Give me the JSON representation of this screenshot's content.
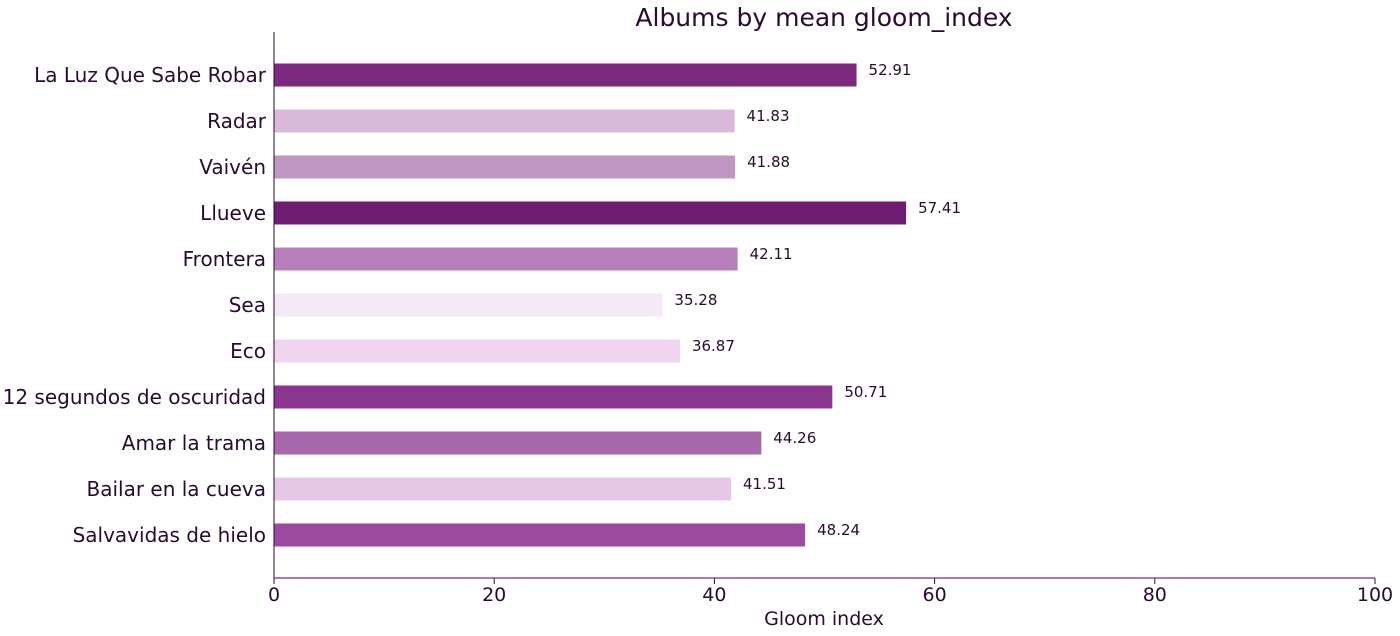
{
  "chart_data": {
    "type": "bar",
    "orientation": "horizontal",
    "title": "Albums by mean gloom_index",
    "xlabel": "Gloom index",
    "ylabel": "",
    "xlim": [
      0,
      100
    ],
    "xticks": [
      0,
      20,
      40,
      60,
      80,
      100
    ],
    "grid": false,
    "categories": [
      "La Luz Que Sabe Robar",
      "Radar",
      "Vaivén",
      "Llueve",
      "Frontera",
      "Sea",
      "Eco",
      "12 segundos de oscuridad",
      "Amar la trama",
      "Bailar en la cueva",
      "Salvavidas de hielo"
    ],
    "values": [
      52.91,
      41.83,
      41.88,
      57.41,
      42.11,
      35.28,
      36.87,
      50.71,
      44.26,
      41.51,
      48.24
    ],
    "value_labels": [
      "52.91",
      "41.83",
      "41.88",
      "57.41",
      "42.11",
      "35.28",
      "36.87",
      "50.71",
      "44.26",
      "41.51",
      "48.24"
    ],
    "colors": [
      "#7c2a80",
      "#d9b8d9",
      "#c097c3",
      "#6f1d73",
      "#b880bb",
      "#f6e9f6",
      "#efd5ef",
      "#8b3490",
      "#a867ac",
      "#e6c8e6",
      "#9b4aa0"
    ]
  }
}
